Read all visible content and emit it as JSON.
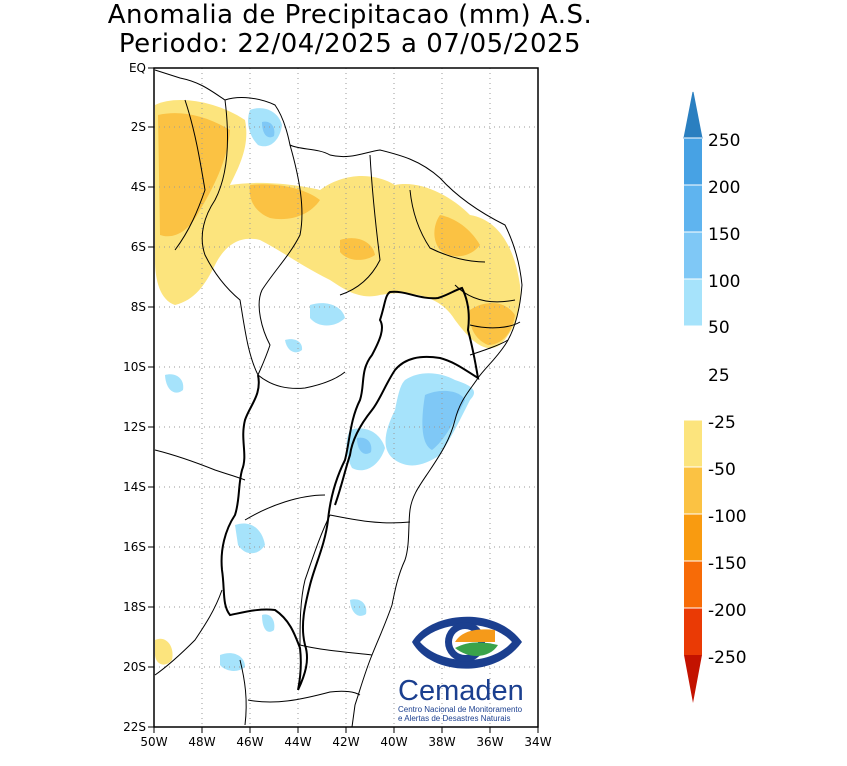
{
  "title": {
    "line1": "Anomalia de Precipitacao (mm) A.S.",
    "line2": "Periodo: 22/04/2025 a 07/05/2025"
  },
  "map": {
    "lat_ticks": [
      "EQ",
      "2S",
      "4S",
      "6S",
      "8S",
      "10S",
      "12S",
      "14S",
      "16S",
      "18S",
      "20S",
      "22S"
    ],
    "lon_ticks": [
      "50W",
      "48W",
      "46W",
      "44W",
      "42W",
      "40W",
      "38W",
      "36W",
      "34W"
    ],
    "lat_range": [
      0,
      -22
    ],
    "lon_range": [
      -50,
      -34
    ],
    "gridlines": "dotted"
  },
  "legend": {
    "labels": [
      "250",
      "200",
      "150",
      "100",
      "50",
      "25",
      "-25",
      "-50",
      "-100",
      "-150",
      "-200",
      "-250"
    ],
    "colors": {
      "250": "#2a7fc0",
      "200": "#47a2e4",
      "150": "#5fb4ef",
      "100": "#7fc8f6",
      "50": "#a6e3fb",
      "25": "#ffffff",
      "-25": "#fce47d",
      "-50": "#fbc243",
      "-100": "#f99b10",
      "-150": "#f76b07",
      "-200": "#ea3a05",
      "-250": "#c31200"
    }
  },
  "logo": {
    "name": "Cemaden",
    "line1": "Centro Nacional de Monitoramento",
    "line2": "e Alertas de Desastres Naturais"
  }
}
